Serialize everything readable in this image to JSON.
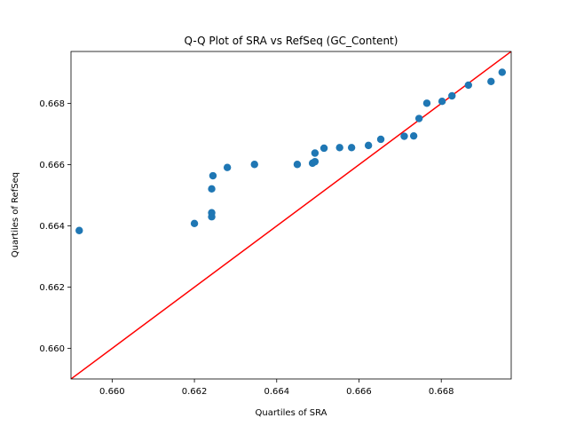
{
  "chart_data": {
    "type": "scatter",
    "title": "Q-Q Plot of SRA vs RefSeq (GC_Content)",
    "xlabel": "Quartiles of SRA",
    "ylabel": "Quartiles of RefSeq",
    "xlim": [
      0.659,
      0.6697
    ],
    "ylim": [
      0.659,
      0.6697
    ],
    "xticks": [
      0.66,
      0.662,
      0.664,
      0.666,
      0.668
    ],
    "yticks": [
      0.66,
      0.662,
      0.664,
      0.666,
      0.668
    ],
    "tick_labels": {
      "x": [
        "0.660",
        "0.662",
        "0.664",
        "0.666",
        "0.668"
      ],
      "y": [
        "0.660",
        "0.662",
        "0.664",
        "0.666",
        "0.668"
      ]
    },
    "grid": false,
    "marker_color": "#1f77b4",
    "reference_line": {
      "color": "#ff0000",
      "from": [
        0.659,
        0.659
      ],
      "to": [
        0.6697,
        0.6697
      ]
    },
    "points": [
      {
        "x": 0.6592,
        "y": 0.66385
      },
      {
        "x": 0.662,
        "y": 0.66408
      },
      {
        "x": 0.66242,
        "y": 0.6643
      },
      {
        "x": 0.66242,
        "y": 0.66443
      },
      {
        "x": 0.66242,
        "y": 0.66521
      },
      {
        "x": 0.66245,
        "y": 0.66564
      },
      {
        "x": 0.6628,
        "y": 0.66591
      },
      {
        "x": 0.66346,
        "y": 0.66601
      },
      {
        "x": 0.6645,
        "y": 0.66601
      },
      {
        "x": 0.66487,
        "y": 0.66605
      },
      {
        "x": 0.66493,
        "y": 0.6661
      },
      {
        "x": 0.66493,
        "y": 0.66638
      },
      {
        "x": 0.66515,
        "y": 0.66654
      },
      {
        "x": 0.66553,
        "y": 0.66656
      },
      {
        "x": 0.66582,
        "y": 0.66656
      },
      {
        "x": 0.66623,
        "y": 0.66663
      },
      {
        "x": 0.66653,
        "y": 0.66683
      },
      {
        "x": 0.6671,
        "y": 0.66693
      },
      {
        "x": 0.66733,
        "y": 0.66694
      },
      {
        "x": 0.66746,
        "y": 0.66751
      },
      {
        "x": 0.66765,
        "y": 0.66801
      },
      {
        "x": 0.66802,
        "y": 0.66807
      },
      {
        "x": 0.66826,
        "y": 0.66825
      },
      {
        "x": 0.66866,
        "y": 0.6686
      },
      {
        "x": 0.66921,
        "y": 0.66872
      },
      {
        "x": 0.66948,
        "y": 0.66902
      }
    ]
  }
}
